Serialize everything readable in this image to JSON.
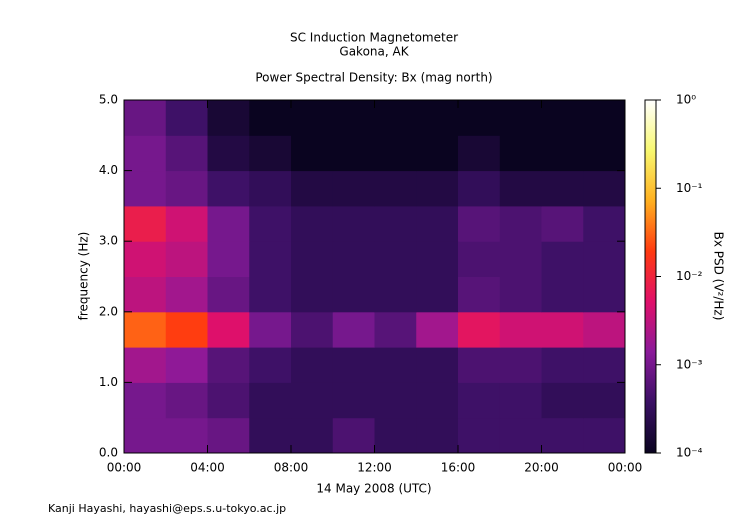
{
  "chart_data": {
    "type": "spectrogram",
    "title": "SC Induction Magnetometer",
    "subtitle": "Gakona, AK",
    "plot_title": "Power Spectral Density: Bx (mag north)",
    "x_label": "14 May 2008 (UTC)",
    "y_label": "frequency (Hz)",
    "colorbar_label": "Bx PSD (V²/Hz)",
    "footer": "Kanji Hayashi, hayashi@eps.s.u-tokyo.ac.jp",
    "xlim": [
      0,
      24
    ],
    "xticks": [
      {
        "value": 0,
        "label": "00:00"
      },
      {
        "value": 4,
        "label": "04:00"
      },
      {
        "value": 8,
        "label": "08:00"
      },
      {
        "value": 12,
        "label": "12:00"
      },
      {
        "value": 16,
        "label": "16:00"
      },
      {
        "value": 20,
        "label": "20:00"
      },
      {
        "value": 24,
        "label": "00:00"
      }
    ],
    "ylim": [
      0,
      5
    ],
    "yticks": [
      {
        "value": 0,
        "label": "0.0"
      },
      {
        "value": 1,
        "label": "1.0"
      },
      {
        "value": 2,
        "label": "2.0"
      },
      {
        "value": 3,
        "label": "3.0"
      },
      {
        "value": 4,
        "label": "4.0"
      },
      {
        "value": 5,
        "label": "5.0"
      }
    ],
    "clim": [
      0.0001,
      1
    ],
    "cticks": [
      {
        "value": 1,
        "label": "10⁰"
      },
      {
        "value": 0.1,
        "label": "10⁻¹"
      },
      {
        "value": 0.01,
        "label": "10⁻²"
      },
      {
        "value": 0.001,
        "label": "10⁻³"
      },
      {
        "value": 0.0001,
        "label": "10⁻⁴"
      }
    ],
    "color_log_scale": true,
    "colors": [
      "#0a0420",
      "#3a1064",
      "#8a1a9a",
      "#e0106a",
      "#ff3a10",
      "#ffb020",
      "#f8f870",
      "#ffffff"
    ],
    "xbins": [
      0,
      2,
      4,
      6,
      8,
      10,
      12,
      14,
      16,
      18,
      20,
      22,
      24
    ],
    "ybins": [
      0,
      0.5,
      1,
      1.5,
      2,
      2.5,
      3,
      3.5,
      4,
      4.5,
      5
    ],
    "z": [
      [
        0.001,
        0.001,
        0.0008,
        0.0003,
        0.0003,
        0.0005,
        0.0003,
        0.0003,
        0.0004,
        0.0004,
        0.0004,
        0.0004
      ],
      [
        0.001,
        0.0008,
        0.0005,
        0.0003,
        0.0003,
        0.0003,
        0.0003,
        0.0003,
        0.0004,
        0.0004,
        0.0003,
        0.0003
      ],
      [
        0.002,
        0.0015,
        0.0006,
        0.0004,
        0.0003,
        0.0003,
        0.0003,
        0.0003,
        0.0005,
        0.0005,
        0.0004,
        0.0004
      ],
      [
        0.03,
        0.02,
        0.005,
        0.001,
        0.0005,
        0.001,
        0.0006,
        0.002,
        0.006,
        0.004,
        0.004,
        0.003
      ],
      [
        0.003,
        0.002,
        0.0008,
        0.0004,
        0.0003,
        0.0003,
        0.0003,
        0.0003,
        0.0006,
        0.0005,
        0.0004,
        0.0004
      ],
      [
        0.004,
        0.003,
        0.001,
        0.0004,
        0.0003,
        0.0003,
        0.0003,
        0.0003,
        0.0005,
        0.0005,
        0.0004,
        0.0004
      ],
      [
        0.008,
        0.004,
        0.001,
        0.0004,
        0.0003,
        0.0003,
        0.0003,
        0.0003,
        0.0006,
        0.0005,
        0.0006,
        0.0004
      ],
      [
        0.001,
        0.0008,
        0.0004,
        0.0003,
        0.0002,
        0.0002,
        0.0002,
        0.0002,
        0.0003,
        0.0002,
        0.0002,
        0.0002
      ],
      [
        0.001,
        0.0006,
        0.0002,
        0.00015,
        0.0001,
        0.0001,
        0.0001,
        0.0001,
        0.00015,
        0.0001,
        0.0001,
        0.0001
      ],
      [
        0.0008,
        0.0004,
        0.00015,
        0.0001,
        0.0001,
        0.0001,
        0.0001,
        0.0001,
        0.0001,
        0.0001,
        0.0001,
        0.0001
      ]
    ]
  }
}
